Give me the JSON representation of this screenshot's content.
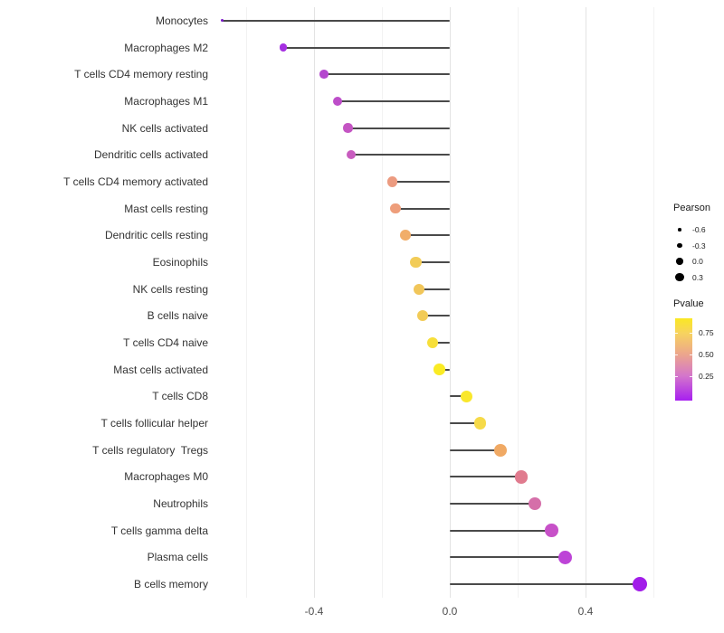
{
  "chart_data": {
    "type": "scatter",
    "variant": "lollipop",
    "title": "",
    "xlabel": "",
    "ylabel": "",
    "x_tick_values": [
      -0.4,
      0.0,
      0.4
    ],
    "x_tick_labels": [
      "-0.4",
      "0.0",
      "0.4"
    ],
    "x_minor_grid_values": [
      -0.6,
      -0.2,
      0.2,
      0.6
    ],
    "xlim": [
      -0.69,
      0.62
    ],
    "grid": "vertical-only",
    "legend_position": "right",
    "categories": [
      "Monocytes",
      "Macrophages M2",
      "T cells CD4 memory resting",
      "Macrophages M1",
      "NK cells activated",
      "Dendritic cells activated",
      "T cells CD4 memory activated",
      "Mast cells resting",
      "Dendritic cells resting",
      "Eosinophils",
      "NK cells resting",
      "B cells naive",
      "T cells CD4 naive",
      "Mast cells activated",
      "T cells CD8",
      "T cells follicular helper",
      "T cells regulatory  Tregs",
      "Macrophages M0",
      "Neutrophils",
      "T cells gamma delta",
      "Plasma cells",
      "B cells memory"
    ],
    "series": [
      {
        "name": "Pearson",
        "values": [
          -0.67,
          -0.49,
          -0.37,
          -0.33,
          -0.3,
          -0.29,
          -0.17,
          -0.16,
          -0.13,
          -0.1,
          -0.09,
          -0.08,
          -0.05,
          -0.03,
          0.05,
          0.09,
          0.15,
          0.21,
          0.25,
          0.3,
          0.34,
          0.56
        ]
      }
    ],
    "point_colors": [
      "#7a16c9",
      "#a52fe1",
      "#b447ce",
      "#bd4ec9",
      "#c455c3",
      "#c85cbf",
      "#ec9b80",
      "#ee9e7b",
      "#f1ae6a",
      "#f2cc58",
      "#f1c65a",
      "#f2cb57",
      "#f7df3a",
      "#faeb24",
      "#f9e72b",
      "#f6da49",
      "#f0a964",
      "#e07b8e",
      "#d56fa9",
      "#c751c8",
      "#bd44d7",
      "#a21de9"
    ]
  },
  "legend": {
    "size": {
      "title": "Pearson",
      "labels": [
        "-0.6",
        "-0.3",
        "0.0",
        "0.3"
      ],
      "dot_color": "#000000"
    },
    "color": {
      "title": "Pvalue",
      "tick_labels": [
        "0.75",
        "0.50",
        "0.25"
      ],
      "gradient_stops": [
        "#fae823",
        "#f7d35f",
        "#eca58d",
        "#d476cb",
        "#a71ff0"
      ]
    }
  },
  "colors": {
    "stem": "#4a4a4a",
    "grid_major": "#e3e3e3",
    "grid_minor": "#f2f2f2",
    "axis_text": "#4d4d4d",
    "category_text": "#333333",
    "background": "#ffffff"
  }
}
